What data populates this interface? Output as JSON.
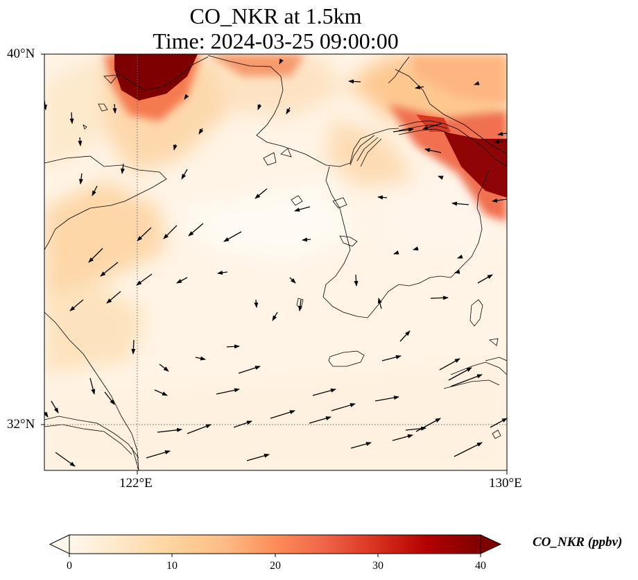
{
  "title": {
    "line1": "CO_NKR at 1.5km",
    "line2": "Time: 2024-03-25 09:00:00"
  },
  "map": {
    "extent": {
      "lon_min": 120,
      "lon_max": 130,
      "lat_min": 31,
      "lat_max": 40
    },
    "gridlines": {
      "lon": [
        122,
        130
      ],
      "lat": [
        32,
        40
      ],
      "style": "dotted"
    },
    "tick_labels": {
      "lat_top": "40°N",
      "lat_32": "32°N",
      "lon_122": "122°E",
      "lon_130": "130°E"
    },
    "coastlines": true,
    "wind_vectors": true
  },
  "colorbar": {
    "label": "CO_NKR (ppbv)",
    "ticks": [
      "0",
      "10",
      "20",
      "30",
      "40"
    ],
    "min": 0,
    "max": 40,
    "extend": "both",
    "colormap": "OrRd",
    "colors": [
      "#fff7ec",
      "#fee8c8",
      "#fdd49e",
      "#fdbb84",
      "#fc8d59",
      "#ef6548",
      "#d7301f",
      "#b30000",
      "#7f0000"
    ]
  }
}
